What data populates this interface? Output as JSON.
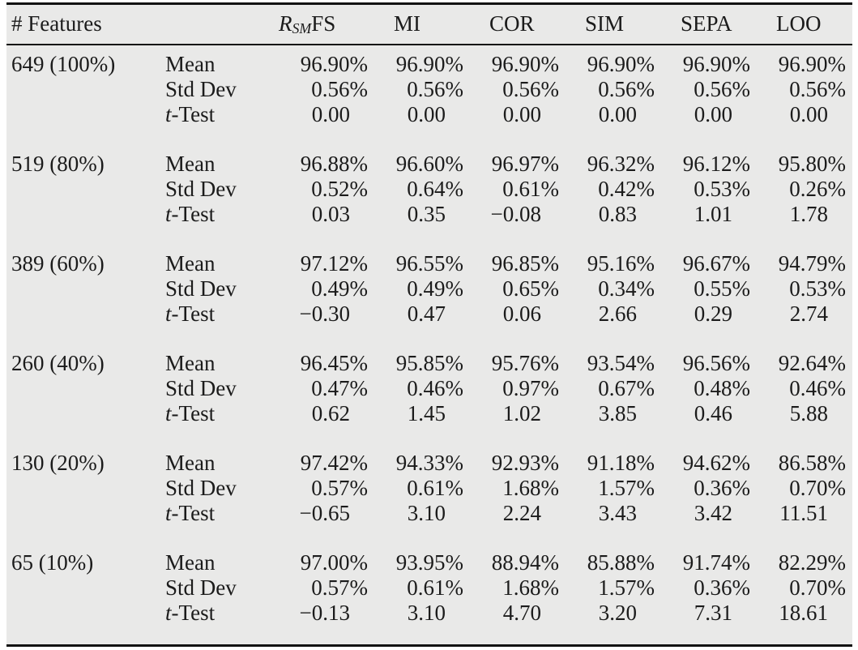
{
  "header": {
    "features": "# Features",
    "first_method": {
      "symbol": "R",
      "subscript": "SM",
      "suffix": "FS"
    },
    "methods": [
      "MI",
      "COR",
      "SIM",
      "SEPA",
      "LOO"
    ]
  },
  "row_labels": {
    "mean": "Mean",
    "std": "Std Dev",
    "t": "t-Test"
  },
  "blocks": [
    {
      "features": "649 (100%)",
      "mean": [
        "96.90%",
        "96.90%",
        "96.90%",
        "96.90%",
        "96.90%",
        "96.90%"
      ],
      "std": [
        "0.56%",
        "0.56%",
        "0.56%",
        "0.56%",
        "0.56%",
        "0.56%"
      ],
      "t": [
        "0.00",
        "0.00",
        "0.00",
        "0.00",
        "0.00",
        "0.00"
      ]
    },
    {
      "features": "519 (80%)",
      "mean": [
        "96.88%",
        "96.60%",
        "96.97%",
        "96.32%",
        "96.12%",
        "95.80%"
      ],
      "std": [
        "0.52%",
        "0.64%",
        "0.61%",
        "0.42%",
        "0.53%",
        "0.26%"
      ],
      "t": [
        "0.03",
        "0.35",
        "−0.08",
        "0.83",
        "1.01",
        "1.78"
      ]
    },
    {
      "features": "389 (60%)",
      "mean": [
        "97.12%",
        "96.55%",
        "96.85%",
        "95.16%",
        "96.67%",
        "94.79%"
      ],
      "std": [
        "0.49%",
        "0.49%",
        "0.65%",
        "0.34%",
        "0.55%",
        "0.53%"
      ],
      "t": [
        "−0.30",
        "0.47",
        "0.06",
        "2.66",
        "0.29",
        "2.74"
      ]
    },
    {
      "features": "260 (40%)",
      "mean": [
        "96.45%",
        "95.85%",
        "95.76%",
        "93.54%",
        "96.56%",
        "92.64%"
      ],
      "std": [
        "0.47%",
        "0.46%",
        "0.97%",
        "0.67%",
        "0.48%",
        "0.46%"
      ],
      "t": [
        "0.62",
        "1.45",
        "1.02",
        "3.85",
        "0.46",
        "5.88"
      ]
    },
    {
      "features": "130 (20%)",
      "mean": [
        "97.42%",
        "94.33%",
        "92.93%",
        "91.18%",
        "94.62%",
        "86.58%"
      ],
      "std": [
        "0.57%",
        "0.61%",
        "1.68%",
        "1.57%",
        "0.36%",
        "0.70%"
      ],
      "t": [
        "−0.65",
        "3.10",
        "2.24",
        "3.43",
        "3.42",
        "11.51"
      ]
    },
    {
      "features": "65 (10%)",
      "mean": [
        "97.00%",
        "93.95%",
        "88.94%",
        "85.88%",
        "91.74%",
        "82.29%"
      ],
      "std": [
        "0.57%",
        "0.61%",
        "1.68%",
        "1.57%",
        "0.36%",
        "0.70%"
      ],
      "t": [
        "−0.13",
        "3.10",
        "4.70",
        "3.20",
        "7.31",
        "18.61"
      ]
    }
  ],
  "colors": {
    "table_background": "#e9e9e8",
    "rule": "#121212",
    "text": "#1b1b1b"
  }
}
